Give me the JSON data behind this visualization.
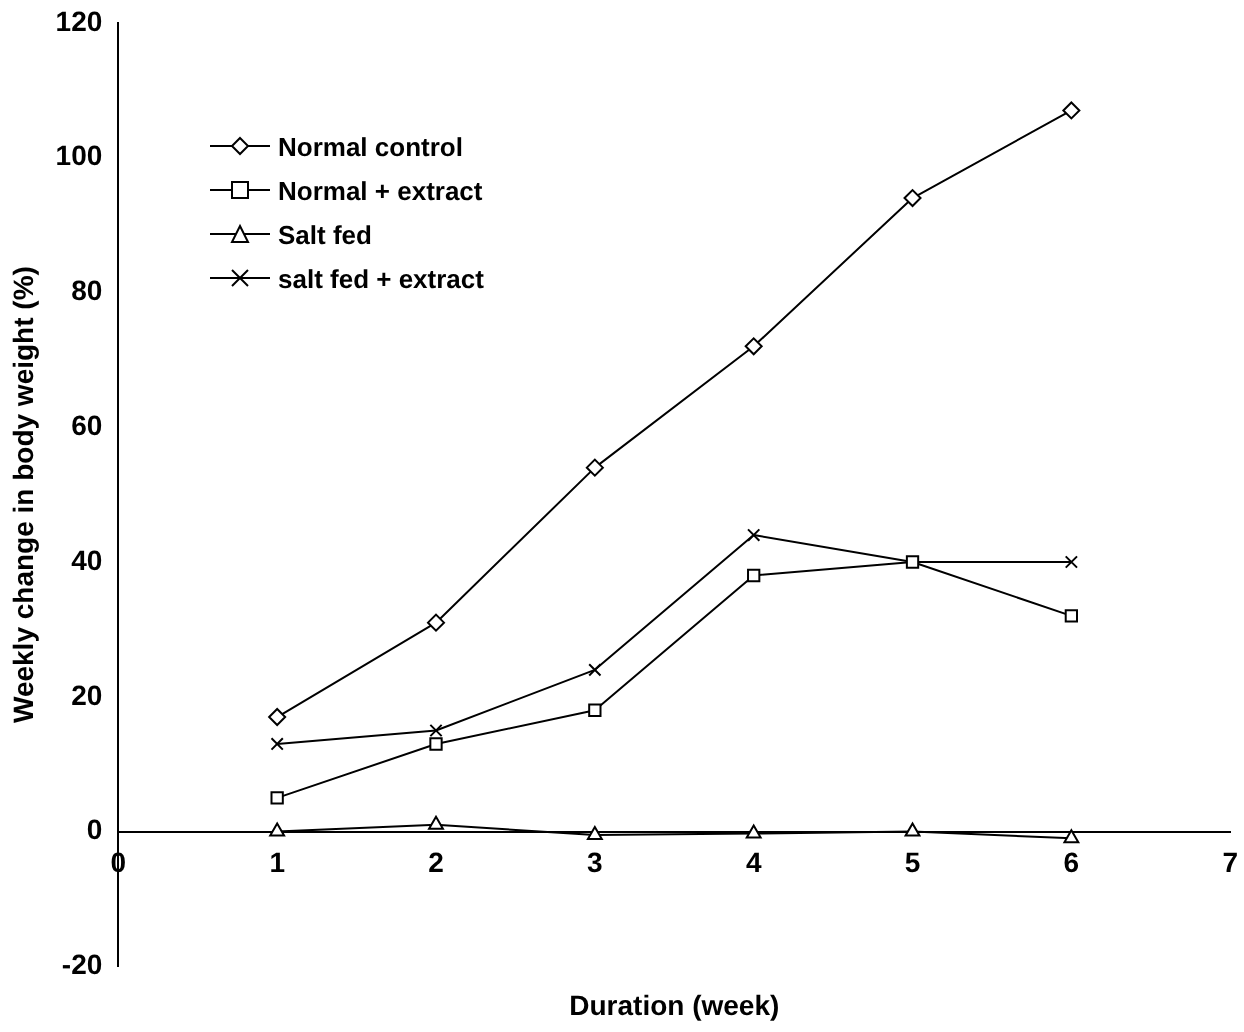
{
  "chart_data": {
    "type": "line",
    "xlabel": "Duration (week)",
    "ylabel": "Weekly change in body weight (%)",
    "x": [
      1,
      2,
      3,
      4,
      5,
      6
    ],
    "xlim": [
      0,
      7
    ],
    "xticks": [
      0,
      1,
      2,
      3,
      4,
      5,
      6,
      7
    ],
    "ylim": [
      -20,
      120
    ],
    "yticks": [
      -20,
      0,
      20,
      40,
      60,
      80,
      100,
      120
    ],
    "grid": false,
    "legend": "top left",
    "line_style": "solid",
    "series": [
      {
        "name": "Normal control",
        "color": "#000000",
        "marker": "diamond",
        "values": [
          17,
          31,
          54,
          72,
          94,
          107
        ]
      },
      {
        "name": "Normal + extract",
        "color": "#000000",
        "marker": "square",
        "values": [
          5,
          13,
          18,
          38,
          40,
          32
        ]
      },
      {
        "name": "Salt fed",
        "color": "#000000",
        "marker": "triangle",
        "values": [
          0,
          1,
          -0.5,
          -0.3,
          0,
          -1
        ]
      },
      {
        "name": "salt fed + extract",
        "color": "#000000",
        "marker": "cross",
        "values": [
          13,
          15,
          24,
          44,
          40,
          40
        ]
      }
    ]
  }
}
